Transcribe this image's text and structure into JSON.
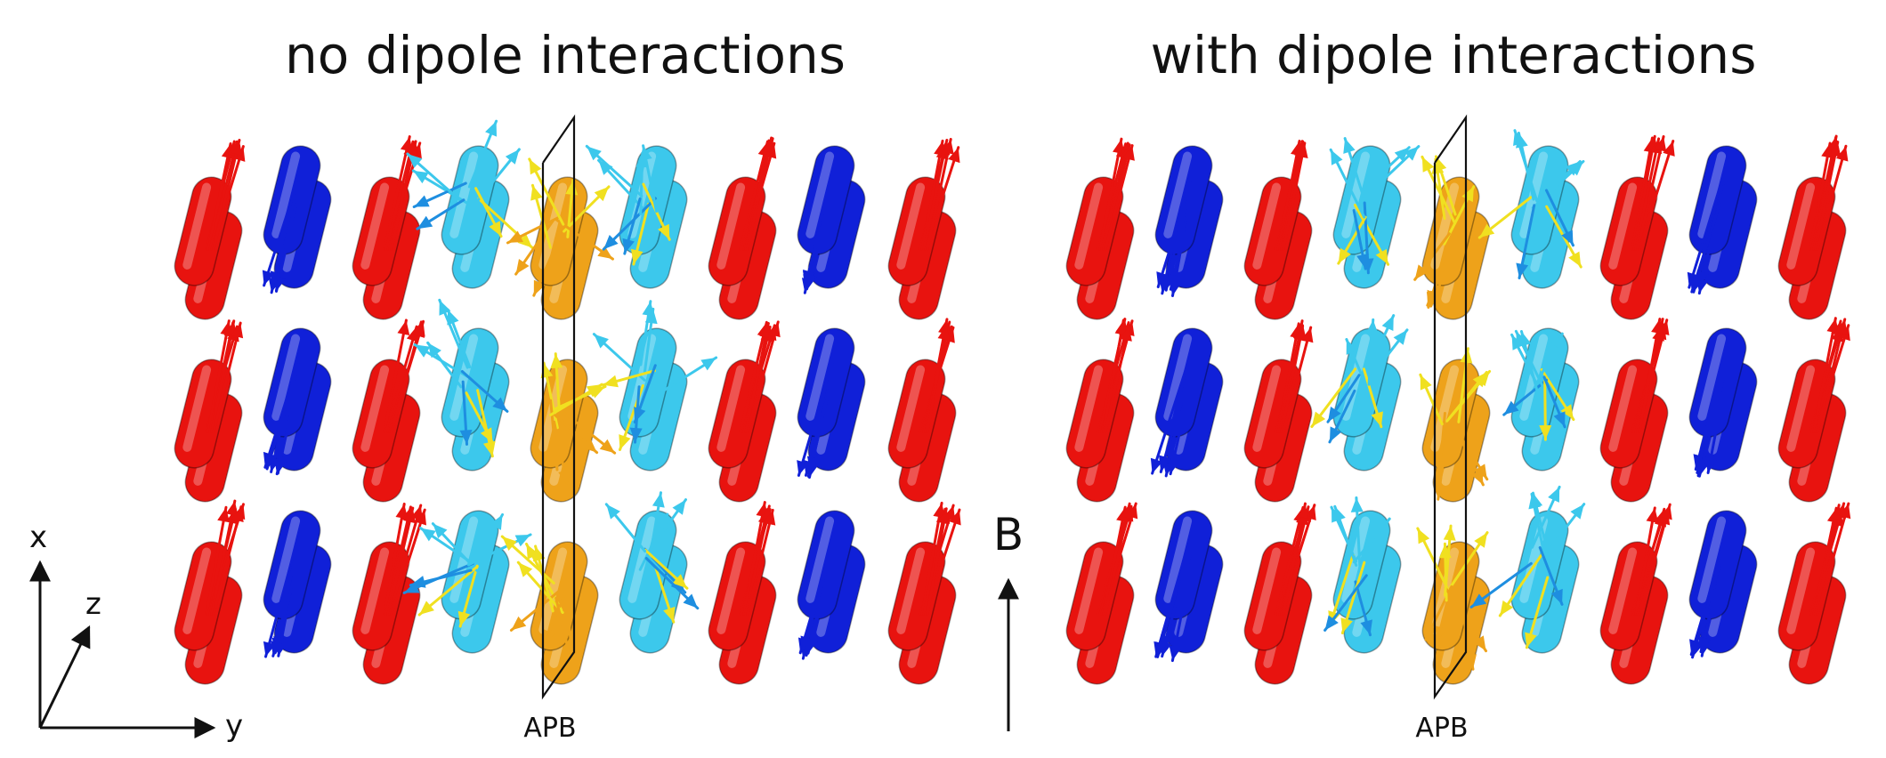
{
  "panels": [
    {
      "title": "no dipole interactions",
      "plane_label": "APB",
      "columns": [
        "red",
        "blue",
        "red",
        "cyan",
        "orange",
        "cyan",
        "red",
        "blue",
        "red"
      ],
      "arrow_spread": "wide"
    },
    {
      "title": "with dipole interactions",
      "plane_label": "APB",
      "columns": [
        "red",
        "blue",
        "red",
        "cyan",
        "orange",
        "cyan",
        "red",
        "blue",
        "red"
      ],
      "arrow_spread": "narrow"
    }
  ],
  "axes": {
    "x_label": "x",
    "y_label": "y",
    "z_label": "z"
  },
  "field": {
    "label": "B"
  },
  "colors": {
    "red": "#e8130f",
    "blue": "#1020d8",
    "cyan": "#3cc8ec",
    "orange": "#eea21a",
    "yellow": "#f0e020",
    "outline": "#111111"
  }
}
